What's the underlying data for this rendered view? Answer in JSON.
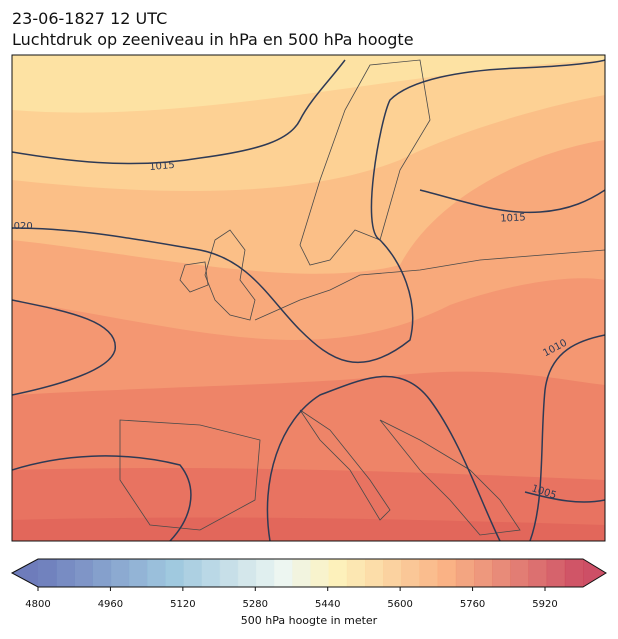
{
  "header": {
    "title": "23-06-1827 12 UTC",
    "subtitle": "Luchtdruk op zeeniveau in hPa en 500 hPa hoogte"
  },
  "isobar_labels": [
    1015,
    1020,
    1015,
    1010,
    1005
  ],
  "colorbar": {
    "label": "500 hPa hoogte in meter",
    "ticks": [
      4800,
      4960,
      5120,
      5280,
      5440,
      5600,
      5760,
      5920
    ]
  }
}
